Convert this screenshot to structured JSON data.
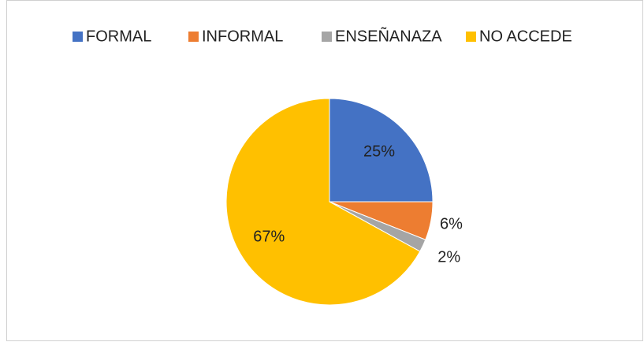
{
  "chart_data": {
    "type": "pie",
    "categories": [
      "FORMAL",
      "INFORMAL",
      "ENSEÑANAZA",
      "NO ACCEDE"
    ],
    "values": [
      25,
      6,
      2,
      67
    ],
    "value_labels": [
      "25%",
      "6%",
      "2%",
      "67%"
    ],
    "colors": [
      "#4472c4",
      "#ed7d31",
      "#a5a5a5",
      "#ffc000"
    ],
    "legend": "top"
  }
}
